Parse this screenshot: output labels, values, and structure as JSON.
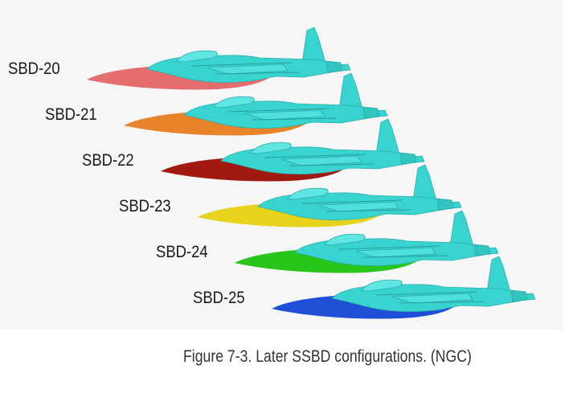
{
  "configurations": [
    {
      "label": "SBD-20",
      "color": "#e46d6d"
    },
    {
      "label": "SBD-21",
      "color": "#e8832a"
    },
    {
      "label": "SBD-22",
      "color": "#a11a12"
    },
    {
      "label": "SBD-23",
      "color": "#e7d21c"
    },
    {
      "label": "SBD-24",
      "color": "#28c51a"
    },
    {
      "label": "SBD-25",
      "color": "#1f4fd6"
    }
  ],
  "airframe_color": "#39d3d0",
  "caption": "Figure 7-3. Later SSBD configurations. (NGC)"
}
